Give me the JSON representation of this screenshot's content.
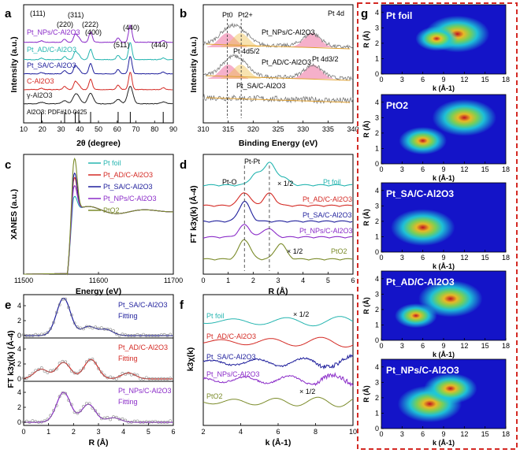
{
  "colors": {
    "teal": "#25b5b0",
    "red": "#d42a24",
    "blue": "#1f1f9c",
    "purple": "#8a2bc8",
    "olive": "#7b8b2a",
    "black": "#222222",
    "gray": "#777777",
    "pink": "#e84f8a",
    "orange": "#e0a030",
    "frame": "#d42a24"
  },
  "panels": {
    "a": {
      "label": "a",
      "xlabel": "2θ (degree)",
      "ylabel": "Intensity (a.u.)",
      "xticks": [
        "10",
        "20",
        "30",
        "40",
        "50",
        "60",
        "70",
        "80",
        "90"
      ],
      "series_labels": [
        "Pt_NPs/C-Al2O3",
        "Pt_AD/C-Al2O3",
        "Pt_SA/C-Al2O3",
        "C-Al2O3",
        "γ-Al2O3"
      ],
      "pdf": "Al2O3: PDF#10-0425",
      "peaks": [
        "(111)",
        "(220)",
        "(311)",
        "(222)",
        "(400)",
        "(511)",
        "(440)",
        "(444)"
      ]
    },
    "b": {
      "label": "b",
      "title": "Pt 4d",
      "xlabel": "Binding Energy (eV)",
      "ylabel": "Intensity (a.u.)",
      "xticks": [
        "310",
        "315",
        "320",
        "325",
        "330",
        "335",
        "340"
      ],
      "series_labels": [
        "Pt_NPs/C-Al2O3",
        "Pt_AD/C-Al2O3",
        "Pt_SA/C-Al2O3"
      ],
      "ann": [
        "Pt0",
        "Pt2+",
        "Pt 4d5/2",
        "Pt 4d3/2"
      ]
    },
    "c": {
      "label": "c",
      "xlabel": "Energy (eV)",
      "ylabel": "XANES (a.u.)",
      "xticks": [
        "11500",
        "11600",
        "11700"
      ],
      "legend": [
        "Pt foil",
        "Pt_AD/C-Al2O3",
        "Pt_SA/C-Al2O3",
        "Pt_NPs/C-Al2O3",
        "PtO2"
      ]
    },
    "d": {
      "label": "d",
      "xlabel": "R (Å)",
      "ylabel": "FT k3χ(k) (Å-4)",
      "xticks": [
        "0",
        "1",
        "2",
        "3",
        "4",
        "5",
        "6"
      ],
      "ann": [
        "Pt-Pt",
        "Pt-O",
        "× 1/2",
        "× 1/2"
      ],
      "series_labels": [
        "Pt foil",
        "Pt_AD/C-Al2O3",
        "Pt_SA/C-Al2O3",
        "Pt_NPs/C-Al2O3",
        "PtO2"
      ]
    },
    "e": {
      "label": "e",
      "xlabel": "R (Å)",
      "ylabel": "FT k3χ(k) (Å-4)",
      "xticks": [
        "0",
        "1",
        "2",
        "3",
        "4",
        "5",
        "6"
      ],
      "yticks": [
        "0",
        "2",
        "4"
      ],
      "subs": [
        "Pt_SA/C-Al2O3",
        "Pt_AD/C-Al2O3",
        "Pt_NPs/C-Al2O3"
      ],
      "fit": "Fitting"
    },
    "f": {
      "label": "f",
      "xlabel": "k (Å-1)",
      "ylabel": "k3χ(k)",
      "xticks": [
        "2",
        "4",
        "6",
        "8",
        "10"
      ],
      "series_labels": [
        "Pt foil",
        "Pt_AD/C-Al2O3",
        "Pt_SA/C-Al2O3",
        "Pt_NPs/C-Al2O3",
        "PtO2"
      ],
      "ann": [
        "× 1/2",
        "× 1/2"
      ]
    },
    "g": {
      "label": "g",
      "xlabel": "k (Å-1)",
      "ylabel": "R (Å)",
      "xticks": [
        "0",
        "3",
        "6",
        "9",
        "12",
        "15",
        "18"
      ],
      "yticks": [
        "0",
        "1",
        "2",
        "3",
        "4"
      ],
      "maps": [
        "Pt foil",
        "PtO2",
        "Pt_SA/C-Al2O3",
        "Pt_AD/C-Al2O3",
        "Pt_NPs/C-Al2O3"
      ]
    }
  },
  "chart_data": [
    {
      "id": "a",
      "type": "line",
      "title": "",
      "xlabel": "2θ (degree)",
      "ylabel": "Intensity (a.u.)",
      "xlim": [
        10,
        90
      ],
      "series": [
        {
          "name": "Pt_NPs/C-Al2O3",
          "color": "#8a2bc8"
        },
        {
          "name": "Pt_AD/C-Al2O3",
          "color": "#25b5b0"
        },
        {
          "name": "Pt_SA/C-Al2O3",
          "color": "#1f1f9c"
        },
        {
          "name": "C-Al2O3",
          "color": "#d42a24"
        },
        {
          "name": "γ-Al2O3",
          "color": "#222222"
        }
      ],
      "peaks_deg": [
        19.5,
        31.9,
        37.6,
        39.5,
        45.8,
        60.5,
        67.0,
        84.6
      ],
      "peak_heights": [
        0.08,
        0.18,
        0.45,
        0.25,
        0.6,
        0.25,
        1.0,
        0.1
      ],
      "pdf_lines": [
        19.5,
        31.9,
        37.6,
        39.5,
        45.8,
        60.5,
        67.0,
        84.6
      ]
    },
    {
      "id": "b",
      "type": "line",
      "title": "Pt 4d",
      "xlabel": "Binding Energy (eV)",
      "ylabel": "Intensity (a.u.)",
      "xlim": [
        310,
        340
      ],
      "series": [
        {
          "name": "Pt_NPs/C-Al2O3",
          "peaks": [
            314.8,
            317.5,
            331.8
          ]
        },
        {
          "name": "Pt_AD/C-Al2O3",
          "peaks": [
            315,
            317.5,
            332
          ]
        },
        {
          "name": "Pt_SA/C-Al2O3",
          "peaks": []
        }
      ],
      "ref_lines": [
        314.8,
        317.6
      ]
    },
    {
      "id": "c",
      "type": "line",
      "xlabel": "Energy (eV)",
      "ylabel": "XANES (a.u.)",
      "xlim": [
        11500,
        11700
      ],
      "ylim": [
        0,
        1.9
      ],
      "edge_energy": 11564,
      "white_line": [
        {
          "name": "Pt foil",
          "peak": 1.25
        },
        {
          "name": "Pt_AD/C-Al2O3",
          "peak": 1.55
        },
        {
          "name": "Pt_SA/C-Al2O3",
          "peak": 1.62
        },
        {
          "name": "Pt_NPs/C-Al2O3",
          "peak": 1.42
        },
        {
          "name": "PtO2",
          "peak": 1.85
        }
      ]
    },
    {
      "id": "d",
      "type": "line",
      "xlabel": "R (Å)",
      "ylabel": "FT k3χ(k) (Å-4)",
      "xlim": [
        0,
        6
      ],
      "ref_lines": [
        1.65,
        2.65
      ],
      "series": [
        {
          "name": "Pt foil",
          "peaks": [
            [
              2.1,
              0.5
            ],
            [
              2.65,
              1.0
            ],
            [
              3.2,
              0.35
            ]
          ]
        },
        {
          "name": "Pt_AD/C-Al2O3",
          "peaks": [
            [
              1.65,
              0.6
            ],
            [
              2.65,
              0.55
            ]
          ]
        },
        {
          "name": "Pt_SA/C-Al2O3",
          "peaks": [
            [
              1.65,
              0.9
            ]
          ]
        },
        {
          "name": "Pt_NPs/C-Al2O3",
          "peaks": [
            [
              1.65,
              0.55
            ],
            [
              2.6,
              0.4
            ]
          ]
        },
        {
          "name": "PtO2",
          "peaks": [
            [
              1.65,
              0.9
            ],
            [
              3.1,
              0.7
            ]
          ]
        }
      ]
    },
    {
      "id": "e",
      "type": "line",
      "xlabel": "R (Å)",
      "ylabel": "FT k3χ(k) (Å-4)",
      "xlim": [
        0,
        6
      ],
      "ylim": [
        0,
        6
      ],
      "subplots": [
        {
          "name": "Pt_SA/C-Al2O3",
          "peaks": [
            [
              1.6,
              5.0
            ],
            [
              2.6,
              1.2
            ],
            [
              3.3,
              0.8
            ]
          ]
        },
        {
          "name": "Pt_AD/C-Al2O3",
          "peaks": [
            [
              0.7,
              1.3
            ],
            [
              1.6,
              2.2
            ],
            [
              2.7,
              2.6
            ],
            [
              4.2,
              0.8
            ]
          ]
        },
        {
          "name": "Pt_NPs/C-Al2O3",
          "peaks": [
            [
              1.6,
              4.0
            ],
            [
              2.6,
              2.4
            ],
            [
              3.6,
              0.6
            ]
          ]
        }
      ]
    },
    {
      "id": "f",
      "type": "line",
      "xlabel": "k (Å-1)",
      "ylabel": "k3χ(k)",
      "xlim": [
        2,
        10
      ],
      "series": [
        {
          "name": "Pt foil"
        },
        {
          "name": "Pt_AD/C-Al2O3"
        },
        {
          "name": "Pt_SA/C-Al2O3"
        },
        {
          "name": "Pt_NPs/C-Al2O3"
        },
        {
          "name": "PtO2"
        }
      ]
    },
    {
      "id": "g",
      "type": "heatmap",
      "xlabel": "k (Å-1)",
      "ylabel": "R (Å)",
      "xlim": [
        0,
        18
      ],
      "ylim": [
        0,
        4.5
      ],
      "maps": [
        {
          "name": "Pt foil",
          "blobs": [
            [
              11,
              2.6,
              1.0
            ],
            [
              8,
              2.3,
              0.6
            ]
          ]
        },
        {
          "name": "PtO2",
          "blobs": [
            [
              12,
              3.0,
              1.0
            ],
            [
              6,
              1.5,
              0.7
            ]
          ]
        },
        {
          "name": "Pt_SA/C-Al2O3",
          "blobs": [
            [
              6,
              1.6,
              1.0
            ]
          ]
        },
        {
          "name": "Pt_AD/C-Al2O3",
          "blobs": [
            [
              10,
              2.7,
              1.0
            ],
            [
              5,
              1.6,
              0.6
            ]
          ]
        },
        {
          "name": "Pt_NPs/C-Al2O3",
          "blobs": [
            [
              7,
              1.6,
              1.0
            ],
            [
              10,
              2.6,
              0.8
            ]
          ]
        }
      ]
    }
  ]
}
